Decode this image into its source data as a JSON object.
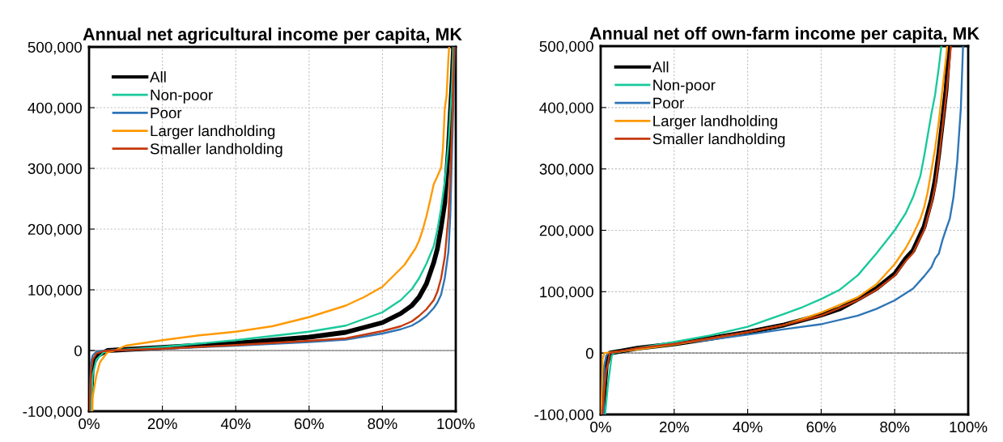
{
  "chart_data": [
    {
      "type": "line",
      "title": "Annual net agricultural income per capita, MK",
      "xlim": [
        0,
        100
      ],
      "ylim": [
        -100000,
        500000
      ],
      "xticks": [
        {
          "value": 0,
          "label": "0%"
        },
        {
          "value": 20,
          "label": "20%"
        },
        {
          "value": 40,
          "label": "40%"
        },
        {
          "value": 60,
          "label": "60%"
        },
        {
          "value": 80,
          "label": "80%"
        },
        {
          "value": 100,
          "label": "100%"
        }
      ],
      "yticks": [
        {
          "value": -100000,
          "label": "-100,000"
        },
        {
          "value": 0,
          "label": "0"
        },
        {
          "value": 100000,
          "label": "100,000"
        },
        {
          "value": 200000,
          "label": "200,000"
        },
        {
          "value": 300000,
          "label": "300,000"
        },
        {
          "value": 400000,
          "label": "400,000"
        },
        {
          "value": 500000,
          "label": "500,000"
        }
      ],
      "grid": true,
      "legend": "top left",
      "ref_lines": [
        {
          "axis": "y",
          "value": 0,
          "color": "#808080"
        }
      ],
      "series": [
        {
          "name": "All",
          "color": "#000000",
          "x": [
            0.3,
            0.9,
            2.4,
            5,
            20,
            40,
            60,
            70,
            80,
            85,
            88,
            90,
            92,
            94,
            95,
            96,
            97,
            98,
            99,
            99.4
          ],
          "values": [
            -100000,
            -23000,
            -8000,
            0,
            5000,
            12000,
            22000,
            30000,
            46000,
            61000,
            74000,
            88000,
            110000,
            145000,
            168000,
            203000,
            243000,
            332000,
            443000,
            500000
          ]
        },
        {
          "name": "Non-poor",
          "color": "#19c99b",
          "x": [
            0.5,
            1,
            2,
            4,
            6,
            20,
            40,
            60,
            70,
            80,
            85,
            88,
            90,
            92,
            94,
            95,
            96,
            97,
            98,
            99,
            99.3
          ],
          "values": [
            -100000,
            -40000,
            -15000,
            -3000,
            0,
            6000,
            17000,
            31000,
            41000,
            63000,
            83000,
            101000,
            119000,
            143000,
            172000,
            199000,
            234000,
            278000,
            340000,
            442000,
            500000
          ]
        },
        {
          "name": "Poor",
          "color": "#2e75b6",
          "x": [
            0.1,
            0.5,
            1,
            2,
            5,
            20,
            40,
            60,
            70,
            80,
            85,
            88,
            90,
            92,
            94,
            95,
            96,
            97,
            98,
            98.5,
            99,
            99.5,
            99.7
          ],
          "values": [
            -100000,
            -20000,
            -8000,
            -2000,
            0,
            3000,
            8000,
            14000,
            18000,
            28000,
            35000,
            41000,
            48000,
            57000,
            70000,
            79000,
            92000,
            119000,
            163000,
            221000,
            332000,
            442000,
            500000
          ]
        },
        {
          "name": "Larger landholding",
          "color": "#ff9900",
          "x": [
            0.9,
            1,
            2,
            3,
            5,
            7,
            10,
            20,
            30,
            40,
            50,
            60,
            70,
            75,
            80,
            83,
            86,
            88,
            89,
            90,
            91,
            92,
            93,
            94,
            95,
            96,
            96.5,
            97,
            97.5,
            98,
            98.2
          ],
          "values": [
            -100000,
            -76000,
            -41000,
            -19000,
            -3000,
            0,
            8000,
            17000,
            25000,
            31000,
            40000,
            55000,
            74000,
            88000,
            105000,
            123000,
            141000,
            159000,
            168000,
            181000,
            199000,
            221000,
            247000,
            274000,
            287000,
            301000,
            332000,
            398000,
            420000,
            482000,
            500000
          ]
        },
        {
          "name": "Smaller landholding",
          "color": "#c5390c",
          "x": [
            0.1,
            0.5,
            1,
            2,
            4,
            6,
            20,
            40,
            60,
            70,
            80,
            85,
            88,
            90,
            92,
            94,
            95,
            96,
            97,
            98,
            98.5,
            99,
            99.6
          ],
          "values": [
            -100000,
            -35000,
            -15000,
            -5000,
            -1000,
            0,
            3000,
            9000,
            16000,
            20000,
            32000,
            40000,
            48000,
            57000,
            68000,
            83000,
            97000,
            119000,
            154000,
            221000,
            287000,
            376000,
            500000
          ]
        }
      ]
    },
    {
      "type": "line",
      "title": "Annual net off own-farm income per capita, MK",
      "xlim": [
        0,
        100
      ],
      "ylim": [
        -100000,
        500000
      ],
      "xticks": [
        {
          "value": 0,
          "label": "0%"
        },
        {
          "value": 20,
          "label": "20%"
        },
        {
          "value": 40,
          "label": "40%"
        },
        {
          "value": 60,
          "label": "60%"
        },
        {
          "value": 80,
          "label": "80%"
        },
        {
          "value": 100,
          "label": "100%"
        }
      ],
      "yticks": [
        {
          "value": -100000,
          "label": "-100,000"
        },
        {
          "value": 0,
          "label": "0"
        },
        {
          "value": 100000,
          "label": "100,000"
        },
        {
          "value": 200000,
          "label": "200,000"
        },
        {
          "value": 300000,
          "label": "300,000"
        },
        {
          "value": 400000,
          "label": "400,000"
        },
        {
          "value": 500000,
          "label": "500,000"
        }
      ],
      "grid": true,
      "legend": "top left",
      "ref_lines": [
        {
          "axis": "y",
          "value": 0,
          "color": "#808080"
        }
      ],
      "series": [
        {
          "name": "All",
          "color": "#000000",
          "x": [
            0.5,
            1.5,
            2.5,
            10,
            20,
            30,
            40,
            50,
            60,
            65,
            70,
            75,
            80,
            83,
            85,
            87,
            88,
            89,
            90,
            91,
            92,
            93,
            94,
            94.8
          ],
          "values": [
            -100000,
            -20000,
            0,
            8000,
            15000,
            24000,
            34000,
            46000,
            62000,
            72000,
            88000,
            105000,
            129000,
            154000,
            167000,
            193000,
            206000,
            228000,
            250000,
            281000,
            325000,
            377000,
            430000,
            500000
          ]
        },
        {
          "name": "Non-poor",
          "color": "#19c99b",
          "x": [
            1.2,
            2,
            3,
            3.5,
            10,
            20,
            30,
            40,
            50,
            55,
            60,
            65,
            70,
            75,
            80,
            83,
            85,
            87,
            88,
            89,
            90,
            91,
            92,
            92.7
          ],
          "values": [
            -100000,
            -50000,
            -5000,
            0,
            8000,
            18000,
            29000,
            43000,
            64000,
            75000,
            88000,
            103000,
            127000,
            162000,
            200000,
            228000,
            254000,
            289000,
            320000,
            355000,
            390000,
            421000,
            465000,
            500000
          ]
        },
        {
          "name": "Poor",
          "color": "#2e75b6",
          "x": [
            0.8,
            1,
            1.5,
            2,
            10,
            20,
            30,
            40,
            50,
            60,
            70,
            75,
            80,
            85,
            88,
            90,
            91,
            92,
            93,
            94,
            95,
            96,
            97,
            98,
            98.6
          ],
          "values": [
            -100000,
            -20000,
            -5000,
            0,
            7000,
            15000,
            22000,
            30000,
            39000,
            47000,
            61000,
            72000,
            86000,
            105000,
            125000,
            140000,
            154000,
            162000,
            184000,
            202000,
            219000,
            254000,
            311000,
            399000,
            500000
          ]
        },
        {
          "name": "Larger landholding",
          "color": "#ff9900",
          "x": [
            0.2,
            0.5,
            1,
            10,
            20,
            30,
            40,
            50,
            60,
            70,
            75,
            80,
            83,
            85,
            87,
            88,
            89,
            90,
            91,
            92,
            93,
            94,
            94.3
          ],
          "values": [
            -100000,
            -10000,
            0,
            6000,
            14000,
            24000,
            34000,
            46000,
            66000,
            91000,
            112000,
            145000,
            171000,
            193000,
            219000,
            237000,
            263000,
            298000,
            333000,
            377000,
            430000,
            482000,
            500000
          ]
        },
        {
          "name": "Smaller landholding",
          "color": "#c5390c",
          "x": [
            0.4,
            1.5,
            2.5,
            10,
            20,
            30,
            40,
            50,
            60,
            70,
            75,
            80,
            83,
            85,
            87,
            88,
            89,
            90,
            91,
            92,
            93,
            94,
            95,
            95.3
          ],
          "values": [
            -100000,
            -30000,
            0,
            8000,
            15000,
            24000,
            34000,
            46000,
            61000,
            86000,
            103000,
            126000,
            150000,
            163000,
            188000,
            200000,
            222000,
            243000,
            272000,
            316000,
            368000,
            420000,
            480000,
            500000
          ]
        }
      ]
    }
  ]
}
